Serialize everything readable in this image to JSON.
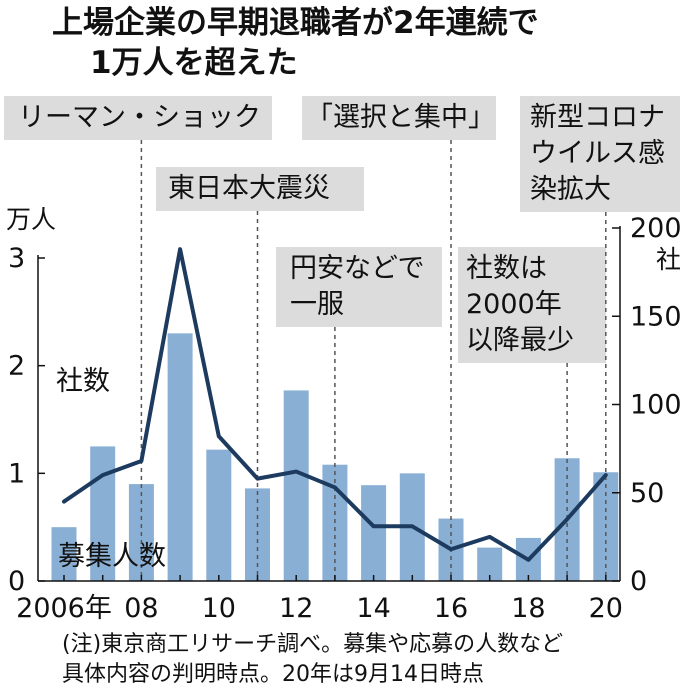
{
  "chart_data": {
    "type": "bar",
    "title_lines": [
      "上場企業の早期退職者が2年連続で",
      "1万人を超えた"
    ],
    "x": [
      2006,
      2007,
      2008,
      2009,
      2010,
      2011,
      2012,
      2013,
      2014,
      2015,
      2016,
      2017,
      2018,
      2019,
      2020
    ],
    "x_tick_labels": [
      {
        "x": 2006,
        "label": "2006年"
      },
      {
        "x": 2008,
        "label": "08"
      },
      {
        "x": 2010,
        "label": "10"
      },
      {
        "x": 2012,
        "label": "12"
      },
      {
        "x": 2014,
        "label": "14"
      },
      {
        "x": 2016,
        "label": "16"
      },
      {
        "x": 2018,
        "label": "18"
      },
      {
        "x": 2020,
        "label": "20"
      }
    ],
    "series": [
      {
        "name": "募集人数",
        "type": "bar",
        "axis": "left",
        "values": [
          0.5,
          1.25,
          0.9,
          2.3,
          1.22,
          0.86,
          1.77,
          1.08,
          0.89,
          1.0,
          0.58,
          0.31,
          0.4,
          1.14,
          1.01
        ]
      },
      {
        "name": "社数",
        "type": "line",
        "axis": "right",
        "values": [
          45,
          60,
          68,
          188,
          82,
          58,
          62,
          53,
          31,
          31,
          18,
          25,
          12,
          35,
          60
        ]
      }
    ],
    "y_left": {
      "unit": "万人",
      "ticks": [
        "0",
        "1",
        "2",
        "3"
      ],
      "range": [
        0,
        3
      ]
    },
    "y_right": {
      "unit": "社",
      "ticks": [
        "0",
        "50",
        "100",
        "150",
        "200"
      ],
      "range": [
        0,
        200
      ]
    },
    "annotations": [
      {
        "year": 2008,
        "lines": [
          "リーマン・ショック"
        ]
      },
      {
        "year": 2011,
        "lines": [
          "東日本大震災"
        ]
      },
      {
        "year": 2013,
        "lines": [
          "円安などで",
          "一服"
        ]
      },
      {
        "year": 2016,
        "lines": [
          "「選択と集中」"
        ]
      },
      {
        "year": 2019,
        "lines": [
          "社数は",
          "2000年",
          "以降最少"
        ]
      },
      {
        "year": 2020,
        "lines": [
          "新型コロナ",
          "ウイルス感",
          "染拡大"
        ]
      }
    ],
    "note_lines": [
      "(注)東京商工リサーチ調べ。募集や応募の人数など",
      "具体内容の判明時点。20年は9月14日時点"
    ],
    "colors": {
      "bar": "#8aafd4",
      "line": "#1d3a5f",
      "annotation_bg": "#dcdcdc",
      "dashed": "#555555"
    },
    "grid": false
  }
}
